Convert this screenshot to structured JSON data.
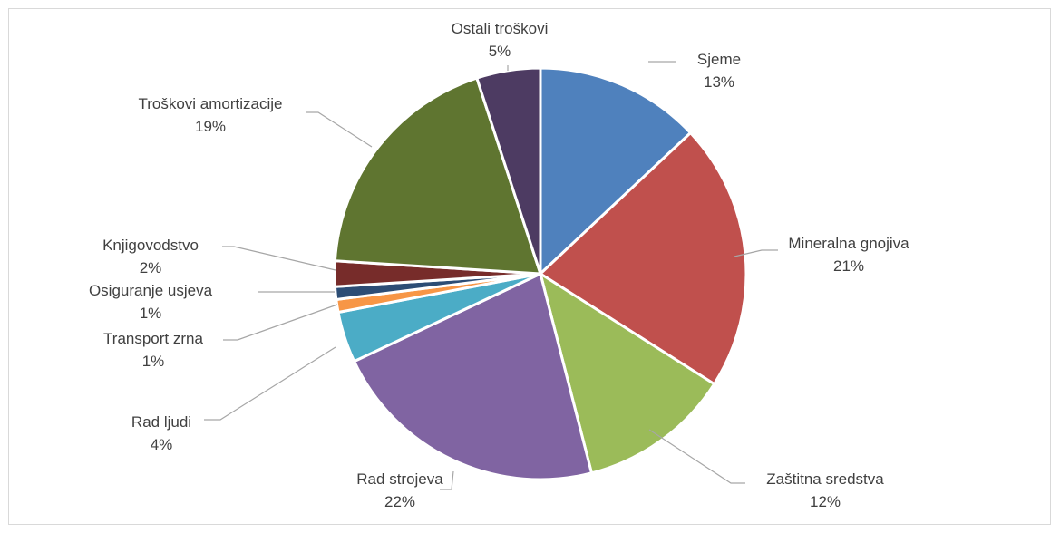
{
  "chart_data": {
    "type": "pie",
    "slices": [
      {
        "label": "Sjeme",
        "value": 13,
        "display": "13%",
        "color": "#4f81bd"
      },
      {
        "label": "Mineralna gnojiva",
        "value": 21,
        "display": "21%",
        "color": "#c0504d"
      },
      {
        "label": "Zaštitna sredstva",
        "value": 12,
        "display": "12%",
        "color": "#9bbb59"
      },
      {
        "label": "Rad strojeva",
        "value": 22,
        "display": "22%",
        "color": "#8064a2"
      },
      {
        "label": "Rad ljudi",
        "value": 4,
        "display": "4%",
        "color": "#4bacc6"
      },
      {
        "label": "Transport zrna",
        "value": 1,
        "display": "1%",
        "color": "#f79646"
      },
      {
        "label": "Osiguranje usjeva",
        "value": 1,
        "display": "1%",
        "color": "#2c4d75"
      },
      {
        "label": "Knjigovodstvo",
        "value": 2,
        "display": "2%",
        "color": "#772c2a"
      },
      {
        "label": "Troškovi amortizacije",
        "value": 19,
        "display": "19%",
        "color": "#5f7530"
      },
      {
        "label": "Ostali troškovi",
        "value": 5,
        "display": "5%",
        "color": "#4d3b62"
      }
    ],
    "start_angle": "top",
    "direction": "clockwise",
    "legend": "none",
    "data_labels": "category and percentage with leader lines"
  }
}
